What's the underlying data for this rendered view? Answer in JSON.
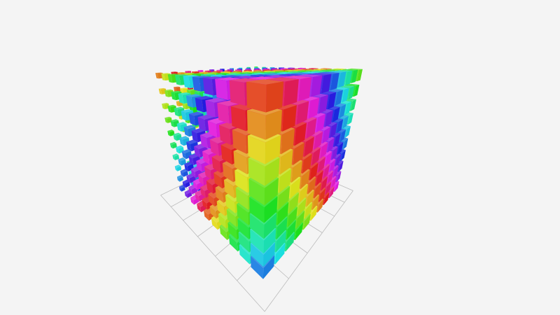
{
  "chart_data": {
    "type": "scatter",
    "dimensions": 3,
    "symbol": "cube",
    "points_per_axis": [
      10,
      10,
      10
    ],
    "color_encoding": "hue",
    "size_encoding": "grows along x",
    "grid": true,
    "title": "",
    "xlabel": "",
    "ylabel": "",
    "zlabel": ""
  },
  "colors": {
    "background": "#f4f4f4",
    "grid_line": "#bbbbbb"
  }
}
